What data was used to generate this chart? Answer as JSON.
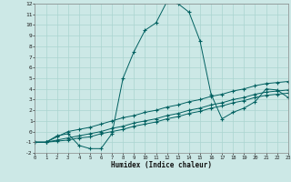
{
  "xlabel": "Humidex (Indice chaleur)",
  "bg_color": "#cce8e6",
  "grid_color": "#aad4d0",
  "line_color": "#006060",
  "xlim": [
    0,
    23
  ],
  "ylim": [
    -2,
    12
  ],
  "xticks": [
    0,
    1,
    2,
    3,
    4,
    5,
    6,
    7,
    8,
    9,
    10,
    11,
    12,
    13,
    14,
    15,
    16,
    17,
    18,
    19,
    20,
    21,
    22,
    23
  ],
  "yticks": [
    -2,
    -1,
    0,
    1,
    2,
    3,
    4,
    5,
    6,
    7,
    8,
    9,
    10,
    11,
    12
  ],
  "line1_x": [
    0,
    1,
    2,
    3,
    4,
    5,
    6,
    7,
    8,
    9,
    10,
    11,
    12,
    13,
    14,
    15,
    16,
    17,
    18,
    19,
    20,
    21,
    22,
    23
  ],
  "line1_y": [
    -1.0,
    -1.0,
    -0.4,
    -0.2,
    -1.3,
    -1.6,
    -1.6,
    -0.2,
    5.0,
    7.5,
    9.5,
    10.2,
    12.2,
    12.0,
    11.2,
    8.5,
    3.5,
    1.2,
    1.8,
    2.2,
    2.8,
    4.0,
    3.9,
    3.2
  ],
  "line2_x": [
    0,
    1,
    2,
    3,
    4,
    5,
    6,
    7,
    8,
    9,
    10,
    11,
    12,
    13,
    14,
    15,
    16,
    17,
    18,
    19,
    20,
    21,
    22,
    23
  ],
  "line2_y": [
    -1.0,
    -1.0,
    -0.5,
    0.0,
    0.2,
    0.4,
    0.7,
    1.0,
    1.3,
    1.5,
    1.8,
    2.0,
    2.3,
    2.5,
    2.8,
    3.0,
    3.3,
    3.5,
    3.8,
    4.0,
    4.3,
    4.5,
    4.6,
    4.7
  ],
  "line3_x": [
    0,
    1,
    2,
    3,
    4,
    5,
    6,
    7,
    8,
    9,
    10,
    11,
    12,
    13,
    14,
    15,
    16,
    17,
    18,
    19,
    20,
    21,
    22,
    23
  ],
  "line3_y": [
    -1.0,
    -1.0,
    -0.8,
    -0.6,
    -0.4,
    -0.2,
    0.0,
    0.3,
    0.5,
    0.8,
    1.0,
    1.2,
    1.5,
    1.7,
    2.0,
    2.2,
    2.5,
    2.7,
    3.0,
    3.2,
    3.5,
    3.7,
    3.8,
    3.9
  ],
  "line4_x": [
    0,
    1,
    2,
    3,
    4,
    5,
    6,
    7,
    8,
    9,
    10,
    11,
    12,
    13,
    14,
    15,
    16,
    17,
    18,
    19,
    20,
    21,
    22,
    23
  ],
  "line4_y": [
    -1.0,
    -1.0,
    -0.9,
    -0.8,
    -0.6,
    -0.5,
    -0.2,
    0.0,
    0.2,
    0.5,
    0.7,
    0.9,
    1.2,
    1.4,
    1.7,
    1.9,
    2.2,
    2.4,
    2.7,
    2.9,
    3.2,
    3.4,
    3.5,
    3.6
  ]
}
